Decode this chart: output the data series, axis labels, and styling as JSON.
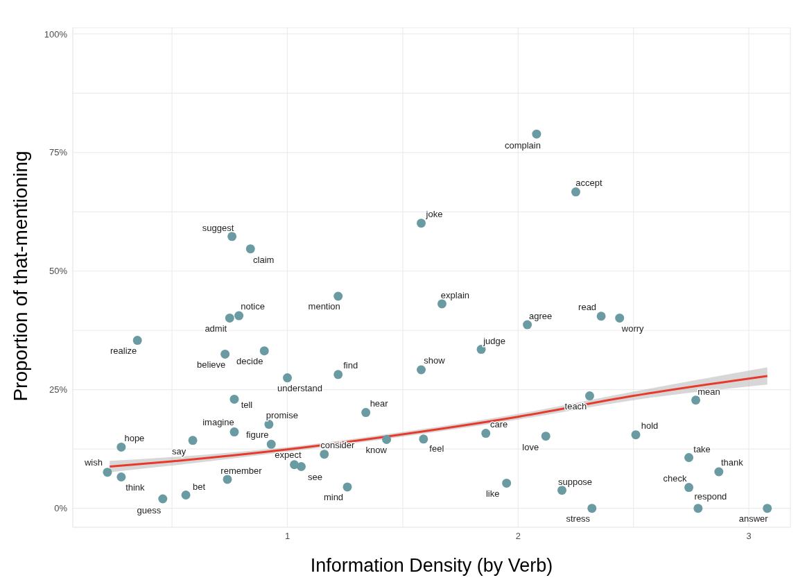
{
  "chart_data": {
    "type": "scatter",
    "xlabel": "Information Density (by Verb)",
    "ylabel": "Proportion of that-mentioning",
    "xlim": [
      0.07,
      3.18
    ],
    "ylim": [
      -4,
      101.3
    ],
    "xticks": [
      {
        "value": 0.5,
        "label": null
      },
      1,
      {
        "value": 1.5,
        "label": null
      },
      2,
      {
        "value": 2.5,
        "label": null
      },
      3
    ],
    "yticks": [
      {
        "value": 0,
        "label": "0%"
      },
      {
        "value": 12.5,
        "label": null
      },
      {
        "value": 25,
        "label": "25%"
      },
      {
        "value": 37.5,
        "label": null
      },
      {
        "value": 50,
        "label": "50%"
      },
      {
        "value": 62.5,
        "label": null
      },
      {
        "value": 75,
        "label": "75%"
      },
      {
        "value": 87.5,
        "label": null
      },
      {
        "value": 100,
        "label": "100%"
      }
    ],
    "grid": true,
    "legend": false,
    "series": [
      {
        "color": "#6a9ba3",
        "marker": "circle",
        "x": [
          0.22,
          0.28,
          0.28,
          0.35,
          0.46,
          0.56,
          0.59,
          0.73,
          0.74,
          0.76,
          0.75,
          0.77,
          0.77,
          0.79,
          0.84,
          0.9,
          0.92,
          0.93,
          1.0,
          1.03,
          1.06,
          1.16,
          1.22,
          1.22,
          1.26,
          1.34,
          1.43,
          1.58,
          1.58,
          1.59,
          1.67,
          1.84,
          1.86,
          1.95,
          2.04,
          2.08,
          2.12,
          2.19,
          2.25,
          2.31,
          2.32,
          2.36,
          2.44,
          2.51,
          2.74,
          2.74,
          2.77,
          2.78,
          2.87,
          3.08
        ],
        "values": [
          7.6,
          6.6,
          12.9,
          35.4,
          2.0,
          2.8,
          14.3,
          32.5,
          6.1,
          57.3,
          40.1,
          23.0,
          16.1,
          40.6,
          54.7,
          33.2,
          17.7,
          13.5,
          27.5,
          9.2,
          8.8,
          11.4,
          28.2,
          44.7,
          4.5,
          20.2,
          14.5,
          60.1,
          29.2,
          14.6,
          43.1,
          33.5,
          15.8,
          5.3,
          38.7,
          78.9,
          15.2,
          3.8,
          66.7,
          23.7,
          0,
          40.5,
          40.1,
          15.5,
          10.7,
          4.4,
          22.8,
          0,
          7.7,
          0
        ]
      },
      {
        "type": "line",
        "color": "#e8392d",
        "x": [
          0.23,
          0.5,
          1,
          1.5,
          2,
          2.5,
          3.08
        ],
        "values": [
          8.8,
          9.9,
          12.4,
          15.6,
          19.3,
          23.7,
          27.9
        ],
        "lower": [
          7.6,
          9.0,
          11.9,
          15.1,
          18.7,
          22.8,
          26.1
        ],
        "upper": [
          10.0,
          10.8,
          12.9,
          16.1,
          19.9,
          24.6,
          29.7
        ]
      }
    ],
    "annotations": [
      {
        "text": "wish",
        "x": 0.22,
        "y": 7.6
      },
      {
        "text": "think",
        "x": 0.28,
        "y": 6.6
      },
      {
        "text": "hope",
        "x": 0.28,
        "y": 12.9
      },
      {
        "text": "realize",
        "x": 0.35,
        "y": 35.4
      },
      {
        "text": "guess",
        "x": 0.46,
        "y": 2.0
      },
      {
        "text": "bet",
        "x": 0.56,
        "y": 2.8
      },
      {
        "text": "say",
        "x": 0.59,
        "y": 14.3
      },
      {
        "text": "believe",
        "x": 0.73,
        "y": 32.5
      },
      {
        "text": "remember",
        "x": 0.74,
        "y": 6.1
      },
      {
        "text": "suggest",
        "x": 0.76,
        "y": 57.3
      },
      {
        "text": "admit",
        "x": 0.75,
        "y": 40.1
      },
      {
        "text": "tell",
        "x": 0.77,
        "y": 23.0
      },
      {
        "text": "imagine",
        "x": 0.77,
        "y": 16.1
      },
      {
        "text": "notice",
        "x": 0.79,
        "y": 40.6
      },
      {
        "text": "claim",
        "x": 0.84,
        "y": 54.7
      },
      {
        "text": "decide",
        "x": 0.9,
        "y": 33.2
      },
      {
        "text": "promise",
        "x": 0.92,
        "y": 17.7
      },
      {
        "text": "figure",
        "x": 0.93,
        "y": 13.5
      },
      {
        "text": "understand",
        "x": 1.0,
        "y": 27.5
      },
      {
        "text": "expect",
        "x": 1.03,
        "y": 9.2
      },
      {
        "text": "see",
        "x": 1.06,
        "y": 8.8
      },
      {
        "text": "consider",
        "x": 1.16,
        "y": 11.4
      },
      {
        "text": "find",
        "x": 1.22,
        "y": 28.2
      },
      {
        "text": "mention",
        "x": 1.22,
        "y": 44.7
      },
      {
        "text": "mind",
        "x": 1.26,
        "y": 4.5
      },
      {
        "text": "hear",
        "x": 1.34,
        "y": 20.2
      },
      {
        "text": "know",
        "x": 1.43,
        "y": 14.5
      },
      {
        "text": "joke",
        "x": 1.58,
        "y": 60.1
      },
      {
        "text": "show",
        "x": 1.58,
        "y": 29.2
      },
      {
        "text": "feel",
        "x": 1.59,
        "y": 14.6
      },
      {
        "text": "explain",
        "x": 1.67,
        "y": 43.1
      },
      {
        "text": "judge",
        "x": 1.84,
        "y": 33.5
      },
      {
        "text": "care",
        "x": 1.86,
        "y": 15.8
      },
      {
        "text": "like",
        "x": 1.95,
        "y": 5.3
      },
      {
        "text": "agree",
        "x": 2.04,
        "y": 38.7
      },
      {
        "text": "complain",
        "x": 2.08,
        "y": 78.9
      },
      {
        "text": "love",
        "x": 2.12,
        "y": 15.2
      },
      {
        "text": "suppose",
        "x": 2.19,
        "y": 3.8
      },
      {
        "text": "accept",
        "x": 2.25,
        "y": 66.7
      },
      {
        "text": "teach",
        "x": 2.31,
        "y": 23.7
      },
      {
        "text": "stress",
        "x": 2.32,
        "y": 0
      },
      {
        "text": "read",
        "x": 2.36,
        "y": 40.5
      },
      {
        "text": "worry",
        "x": 2.44,
        "y": 40.1
      },
      {
        "text": "hold",
        "x": 2.51,
        "y": 15.5
      },
      {
        "text": "take",
        "x": 2.74,
        "y": 10.7
      },
      {
        "text": "check",
        "x": 2.74,
        "y": 4.4
      },
      {
        "text": "mean",
        "x": 2.77,
        "y": 22.8
      },
      {
        "text": "respond",
        "x": 2.78,
        "y": 0
      },
      {
        "text": "thank",
        "x": 2.87,
        "y": 7.7
      },
      {
        "text": "answer",
        "x": 3.08,
        "y": 0
      }
    ]
  }
}
